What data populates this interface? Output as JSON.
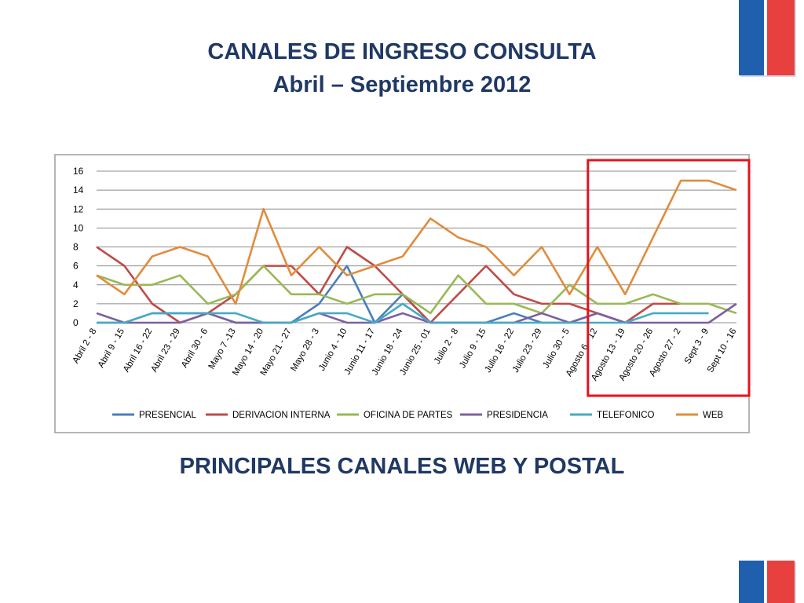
{
  "slide": {
    "title_line1": "CANALES DE INGRESO CONSULTA",
    "title_line2": "Abril – Septiembre 2012",
    "subtitle": "PRINCIPALES CANALES WEB Y POSTAL"
  },
  "colors": {
    "title": "#1f3864",
    "flag_blue": "#1f5fad",
    "flag_red": "#e8403f",
    "highlight_box": "#e0141e"
  },
  "chart_data": {
    "type": "line",
    "title": "",
    "xlabel": "",
    "ylabel": "",
    "ylim": [
      0,
      16
    ],
    "yticks": [
      0,
      2,
      4,
      6,
      8,
      10,
      12,
      14,
      16
    ],
    "grid": true,
    "legend_position": "bottom",
    "categories": [
      "Abril 2 - 8",
      "Abril 9 - 15",
      "Abril 16 - 22",
      "Abril 23 - 29",
      "Abril 30 - 6",
      "Mayo 7 -13",
      "Mayo 14 - 20",
      "Mayo 21 - 27",
      "Mayo 28 - 3",
      "Junio 4 - 10",
      "Junio 11 - 17",
      "Junio 18 - 24",
      "Junio 25 - 01",
      "Julio 2 - 8",
      "Julio 9 - 15",
      "Julio 16 - 22",
      "Julio 23 - 29",
      "Julio 30 - 5",
      "Agosto  6 - 12",
      "Agosto 13 - 19",
      "Agosto 20 - 26",
      "Agosto 27 - 2",
      "Sept 3 - 9",
      "Sept 10 - 16"
    ],
    "series": [
      {
        "name": "PRESENCIAL",
        "color": "#4a7ebb",
        "values": [
          0,
          0,
          1,
          1,
          1,
          0,
          0,
          0,
          2,
          6,
          0,
          3,
          0,
          0,
          0,
          1,
          0,
          0,
          1,
          0,
          null,
          null,
          null,
          null
        ]
      },
      {
        "name": "DERIVACION INTERNA",
        "color": "#be4b48",
        "values": [
          8,
          6,
          2,
          0,
          1,
          3,
          6,
          6,
          3,
          8,
          6,
          3,
          0,
          3,
          6,
          3,
          2,
          2,
          1,
          0,
          2,
          2,
          null,
          null
        ]
      },
      {
        "name": "OFICINA DE PARTES",
        "color": "#98b954",
        "values": [
          5,
          4,
          4,
          5,
          2,
          3,
          6,
          3,
          3,
          2,
          3,
          3,
          1,
          5,
          2,
          2,
          1,
          4,
          2,
          2,
          3,
          2,
          2,
          1
        ]
      },
      {
        "name": "PRESIDENCIA",
        "color": "#7d60a0",
        "values": [
          1,
          0,
          0,
          0,
          1,
          0,
          0,
          0,
          1,
          0,
          0,
          1,
          0,
          0,
          0,
          0,
          1,
          0,
          1,
          0,
          0,
          0,
          0,
          2
        ]
      },
      {
        "name": "TELEFONICO",
        "color": "#46aac4",
        "values": [
          0,
          0,
          1,
          1,
          1,
          1,
          0,
          0,
          1,
          1,
          0,
          2,
          0,
          0,
          0,
          0,
          0,
          0,
          0,
          0,
          1,
          1,
          1,
          null
        ]
      },
      {
        "name": "WEB",
        "color": "#e08c3d",
        "values": [
          5,
          3,
          7,
          8,
          7,
          2,
          12,
          5,
          8,
          5,
          6,
          7,
          11,
          9,
          8,
          5,
          8,
          3,
          8,
          3,
          9,
          15,
          15,
          14
        ]
      }
    ],
    "highlight": {
      "from_category": "Agosto  6 - 12",
      "to_category": "Sept 10 - 16"
    }
  }
}
